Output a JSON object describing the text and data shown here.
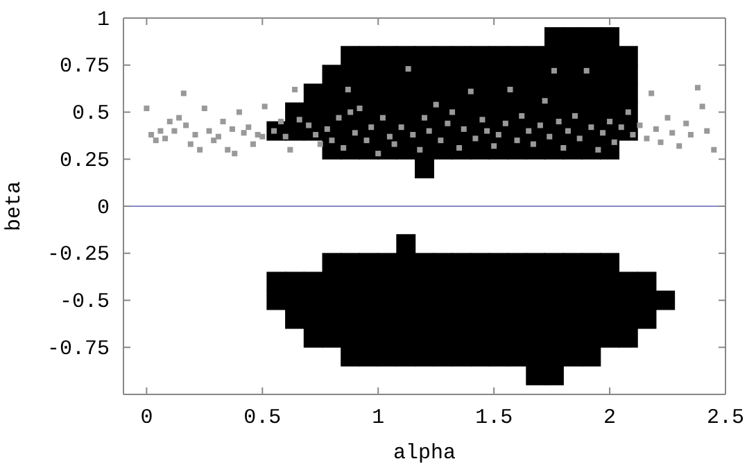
{
  "chart_data": {
    "type": "scatter",
    "xlabel": "alpha",
    "ylabel": "beta",
    "xlim": [
      -0.1,
      2.5
    ],
    "ylim": [
      -1,
      1
    ],
    "xticks": [
      0,
      0.5,
      1,
      1.5,
      2,
      2.5
    ],
    "yticks": [
      -0.75,
      -0.5,
      -0.25,
      0,
      0.25,
      0.5,
      0.75,
      1
    ],
    "marker": "square",
    "ref_lines": [
      {
        "axis": "y",
        "value": 0,
        "color": "#8888cc"
      }
    ],
    "series": [
      {
        "color": "#000000",
        "x": [
          0.56,
          0.64,
          0.64,
          0.72,
          0.72,
          0.72,
          0.8,
          0.8,
          0.8,
          0.8,
          0.8,
          0.88,
          0.88,
          0.88,
          0.88,
          0.88,
          0.88,
          0.96,
          0.96,
          0.96,
          0.96,
          0.96,
          0.96,
          1.04,
          1.04,
          1.04,
          1.04,
          1.04,
          1.04,
          1.12,
          1.12,
          1.12,
          1.12,
          1.12,
          1.12,
          1.2,
          1.2,
          1.2,
          1.2,
          1.2,
          1.2,
          1.2,
          1.28,
          1.28,
          1.28,
          1.28,
          1.28,
          1.28,
          1.36,
          1.36,
          1.36,
          1.36,
          1.36,
          1.36,
          1.44,
          1.44,
          1.44,
          1.44,
          1.44,
          1.44,
          1.52,
          1.52,
          1.52,
          1.52,
          1.52,
          1.52,
          1.6,
          1.6,
          1.6,
          1.6,
          1.6,
          1.6,
          1.68,
          1.68,
          1.68,
          1.68,
          1.68,
          1.68,
          1.76,
          1.76,
          1.76,
          1.76,
          1.76,
          1.76,
          1.76,
          1.84,
          1.84,
          1.84,
          1.84,
          1.84,
          1.84,
          1.84,
          1.92,
          1.92,
          1.92,
          1.92,
          1.92,
          1.92,
          1.92,
          2.0,
          2.0,
          2.0,
          2.0,
          2.0,
          2.0,
          2.0,
          2.08,
          2.08,
          2.08,
          2.08,
          2.08
        ],
        "values": [
          0.4,
          0.4,
          0.5,
          0.4,
          0.5,
          0.6,
          0.3,
          0.4,
          0.5,
          0.6,
          0.7,
          0.3,
          0.4,
          0.5,
          0.6,
          0.7,
          0.8,
          0.3,
          0.4,
          0.5,
          0.6,
          0.7,
          0.8,
          0.3,
          0.4,
          0.5,
          0.6,
          0.7,
          0.8,
          0.3,
          0.4,
          0.5,
          0.6,
          0.7,
          0.8,
          0.2,
          0.3,
          0.4,
          0.5,
          0.6,
          0.7,
          0.8,
          0.3,
          0.4,
          0.5,
          0.6,
          0.7,
          0.8,
          0.3,
          0.4,
          0.5,
          0.6,
          0.7,
          0.8,
          0.3,
          0.4,
          0.5,
          0.6,
          0.7,
          0.8,
          0.3,
          0.4,
          0.5,
          0.6,
          0.7,
          0.8,
          0.3,
          0.4,
          0.5,
          0.6,
          0.7,
          0.8,
          0.3,
          0.4,
          0.5,
          0.6,
          0.7,
          0.8,
          0.3,
          0.4,
          0.5,
          0.6,
          0.7,
          0.8,
          0.9,
          0.3,
          0.4,
          0.5,
          0.6,
          0.7,
          0.8,
          0.9,
          0.3,
          0.4,
          0.5,
          0.6,
          0.7,
          0.8,
          0.9,
          0.3,
          0.4,
          0.5,
          0.6,
          0.7,
          0.8,
          0.9,
          0.4,
          0.5,
          0.6,
          0.7,
          0.8
        ]
      },
      {
        "color": "#000000",
        "x": [
          0.56,
          0.56,
          0.64,
          0.64,
          0.64,
          0.72,
          0.72,
          0.72,
          0.72,
          0.8,
          0.8,
          0.8,
          0.8,
          0.8,
          0.88,
          0.88,
          0.88,
          0.88,
          0.88,
          0.88,
          0.96,
          0.96,
          0.96,
          0.96,
          0.96,
          0.96,
          1.04,
          1.04,
          1.04,
          1.04,
          1.04,
          1.04,
          1.12,
          1.12,
          1.12,
          1.12,
          1.12,
          1.12,
          1.12,
          1.2,
          1.2,
          1.2,
          1.2,
          1.2,
          1.2,
          1.28,
          1.28,
          1.28,
          1.28,
          1.28,
          1.28,
          1.36,
          1.36,
          1.36,
          1.36,
          1.36,
          1.36,
          1.44,
          1.44,
          1.44,
          1.44,
          1.44,
          1.44,
          1.52,
          1.52,
          1.52,
          1.52,
          1.52,
          1.52,
          1.6,
          1.6,
          1.6,
          1.6,
          1.6,
          1.6,
          1.68,
          1.68,
          1.68,
          1.68,
          1.68,
          1.68,
          1.68,
          1.76,
          1.76,
          1.76,
          1.76,
          1.76,
          1.76,
          1.76,
          1.84,
          1.84,
          1.84,
          1.84,
          1.84,
          1.84,
          1.92,
          1.92,
          1.92,
          1.92,
          1.92,
          1.92,
          2.0,
          2.0,
          2.0,
          2.0,
          2.0,
          2.08,
          2.08,
          2.08,
          2.08,
          2.16,
          2.16,
          2.16,
          2.24
        ],
        "values": [
          -0.4,
          -0.5,
          -0.4,
          -0.5,
          -0.6,
          -0.4,
          -0.5,
          -0.6,
          -0.7,
          -0.3,
          -0.4,
          -0.5,
          -0.6,
          -0.7,
          -0.3,
          -0.4,
          -0.5,
          -0.6,
          -0.7,
          -0.8,
          -0.3,
          -0.4,
          -0.5,
          -0.6,
          -0.7,
          -0.8,
          -0.3,
          -0.4,
          -0.5,
          -0.6,
          -0.7,
          -0.8,
          -0.2,
          -0.3,
          -0.4,
          -0.5,
          -0.6,
          -0.7,
          -0.8,
          -0.3,
          -0.4,
          -0.5,
          -0.6,
          -0.7,
          -0.8,
          -0.3,
          -0.4,
          -0.5,
          -0.6,
          -0.7,
          -0.8,
          -0.3,
          -0.4,
          -0.5,
          -0.6,
          -0.7,
          -0.8,
          -0.3,
          -0.4,
          -0.5,
          -0.6,
          -0.7,
          -0.8,
          -0.3,
          -0.4,
          -0.5,
          -0.6,
          -0.7,
          -0.8,
          -0.3,
          -0.4,
          -0.5,
          -0.6,
          -0.7,
          -0.8,
          -0.3,
          -0.4,
          -0.5,
          -0.6,
          -0.7,
          -0.8,
          -0.9,
          -0.3,
          -0.4,
          -0.5,
          -0.6,
          -0.7,
          -0.8,
          -0.9,
          -0.3,
          -0.4,
          -0.5,
          -0.6,
          -0.7,
          -0.8,
          -0.3,
          -0.4,
          -0.5,
          -0.6,
          -0.7,
          -0.8,
          -0.3,
          -0.4,
          -0.5,
          -0.6,
          -0.7,
          -0.4,
          -0.5,
          -0.6,
          -0.7,
          -0.4,
          -0.5,
          -0.6,
          -0.5
        ]
      },
      {
        "color": "#999999",
        "x": [
          0,
          0.02,
          0.04,
          0.06,
          0.08,
          0.1,
          0.12,
          0.14,
          0.16,
          0.17,
          0.19,
          0.21,
          0.23,
          0.25,
          0.27,
          0.29,
          0.31,
          0.33,
          0.35,
          0.37,
          0.38,
          0.4,
          0.42,
          0.44,
          0.46,
          0.48,
          0.5,
          0.51,
          0.55,
          0.58,
          0.6,
          0.62,
          0.64,
          0.66,
          0.7,
          0.73,
          0.75,
          0.78,
          0.8,
          0.83,
          0.85,
          0.87,
          0.88,
          0.9,
          0.92,
          0.95,
          0.97,
          1.0,
          1.02,
          1.05,
          1.07,
          1.1,
          1.13,
          1.15,
          1.18,
          1.2,
          1.22,
          1.25,
          1.27,
          1.3,
          1.32,
          1.35,
          1.37,
          1.4,
          1.42,
          1.45,
          1.47,
          1.5,
          1.52,
          1.55,
          1.57,
          1.6,
          1.62,
          1.65,
          1.67,
          1.7,
          1.72,
          1.74,
          1.76,
          1.78,
          1.8,
          1.82,
          1.85,
          1.87,
          1.9,
          1.92,
          1.95,
          1.97,
          2.0,
          2.02,
          2.05,
          2.08,
          2.1,
          2.13,
          2.16,
          2.18,
          2.2,
          2.22,
          2.25,
          2.27,
          2.3,
          2.33,
          2.35,
          2.38,
          2.4,
          2.42,
          2.45
        ],
        "values": [
          0.52,
          0.38,
          0.35,
          0.4,
          0.36,
          0.45,
          0.4,
          0.47,
          0.6,
          0.43,
          0.33,
          0.38,
          0.3,
          0.52,
          0.4,
          0.35,
          0.37,
          0.45,
          0.3,
          0.41,
          0.28,
          0.5,
          0.39,
          0.42,
          0.33,
          0.38,
          0.37,
          0.53,
          0.4,
          0.45,
          0.37,
          0.3,
          0.62,
          0.46,
          0.43,
          0.38,
          0.33,
          0.41,
          0.35,
          0.47,
          0.31,
          0.62,
          0.5,
          0.39,
          0.52,
          0.35,
          0.42,
          0.28,
          0.47,
          0.37,
          0.33,
          0.42,
          0.73,
          0.38,
          0.3,
          0.47,
          0.4,
          0.54,
          0.35,
          0.44,
          0.5,
          0.31,
          0.41,
          0.61,
          0.36,
          0.46,
          0.4,
          0.32,
          0.38,
          0.44,
          0.62,
          0.35,
          0.48,
          0.4,
          0.33,
          0.43,
          0.56,
          0.37,
          0.72,
          0.45,
          0.31,
          0.4,
          0.48,
          0.36,
          0.72,
          0.42,
          0.3,
          0.39,
          0.45,
          0.34,
          0.42,
          0.5,
          0.38,
          0.43,
          0.36,
          0.6,
          0.41,
          0.34,
          0.47,
          0.39,
          0.32,
          0.44,
          0.38,
          0.63,
          0.53,
          0.4,
          0.3
        ]
      }
    ]
  }
}
